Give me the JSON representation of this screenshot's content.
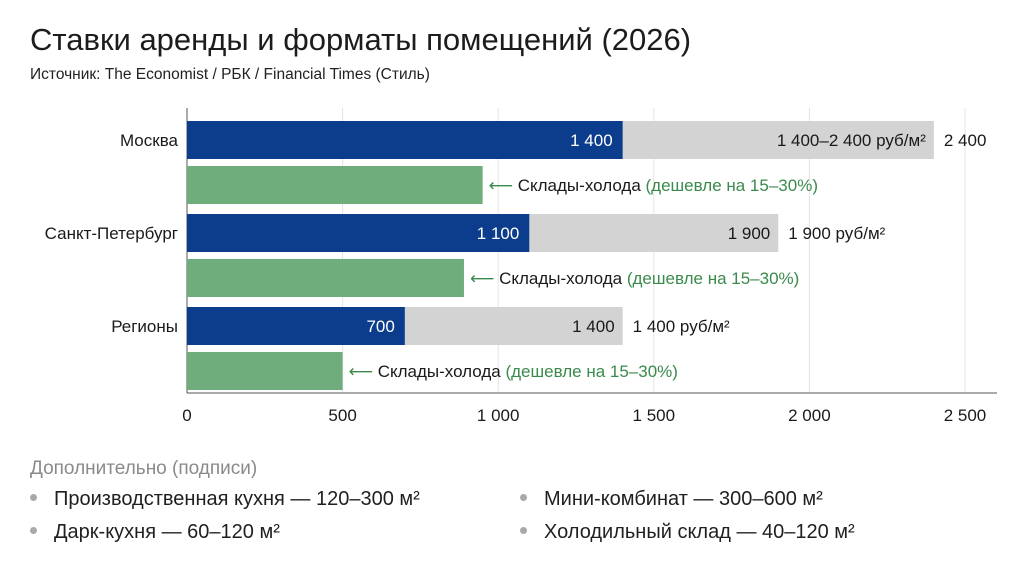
{
  "title": "Ставки аренды и форматы помещений (2026)",
  "subtitle": "Источник: The Economist / РБК / Financial Times (Стиль)",
  "chart_data": {
    "type": "bar",
    "orientation": "horizontal",
    "categories": [
      "Москва",
      "Санкт-Петербург",
      "Регионы"
    ],
    "series": [
      {
        "values": [
          1400,
          1100,
          700
        ],
        "value_labels": [
          "1 400",
          "1 100",
          "700"
        ],
        "color": "#0b3d8c"
      },
      {
        "values": [
          2400,
          1900,
          1400
        ],
        "range_labels": [
          "1 400–2 400 руб/м²",
          "1 900",
          "1 400"
        ],
        "end_labels": [
          "2 400",
          "1 900 руб/м²",
          "1 400 руб/м²"
        ],
        "color": "#d3d3d3"
      },
      {
        "values": [
          950,
          890,
          500
        ],
        "annotation_text": "Склады-холода",
        "annotation_note": "(дешевле на 15–30%)",
        "color": "#6fae7c"
      }
    ],
    "xlim": [
      0,
      2500
    ],
    "xticks": [
      0,
      500,
      1000,
      1500,
      2000,
      2500
    ],
    "xtick_labels": [
      "0",
      "500",
      "1 000",
      "1 500",
      "2 000",
      "2 500"
    ],
    "grid": "vertical",
    "annotation_color": "#3a8a4c",
    "arrow": "⟵"
  },
  "extras": {
    "title": "Дополнительно (подписи)",
    "items": [
      "Производственная кухня — 120–300 м²",
      "Мини-комбинат — 300–600 м²",
      "Дарк-кухня — 60–120 м²",
      "Холодильный склад — 40–120 м²"
    ]
  }
}
